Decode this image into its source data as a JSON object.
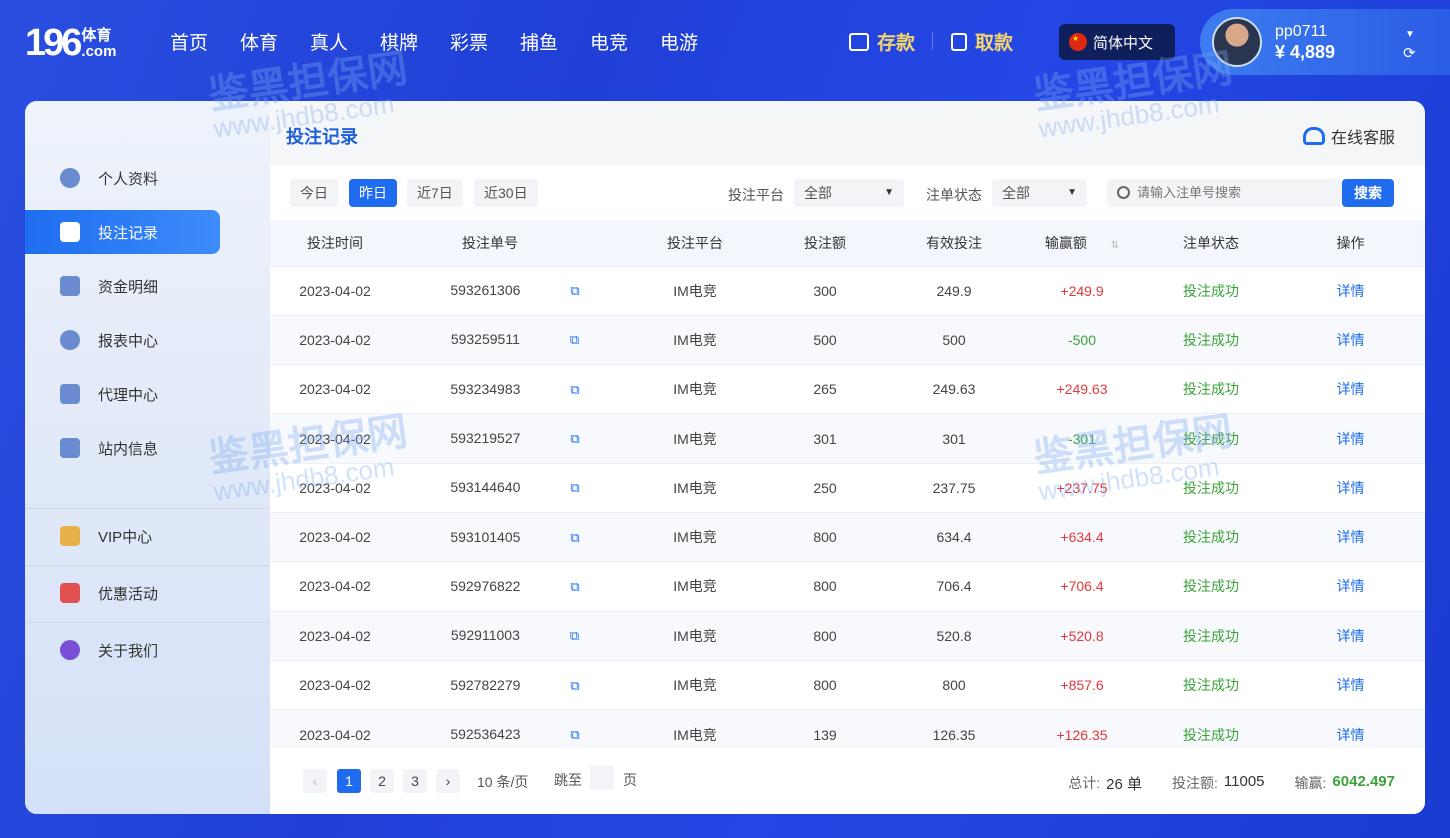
{
  "header": {
    "logo_number": "196",
    "logo_text": "体育",
    "logo_domain": ".com",
    "nav": [
      "首页",
      "体育",
      "真人",
      "棋牌",
      "彩票",
      "捕鱼",
      "电竞",
      "电游"
    ],
    "deposit": "存款",
    "withdraw": "取款",
    "language": "简体中文",
    "username": "pp0711",
    "balance": "¥ 4,889"
  },
  "sidebar": {
    "items": [
      {
        "label": "个人资料",
        "icon": "user-icon"
      },
      {
        "label": "投注记录",
        "icon": "calendar-icon",
        "active": true
      },
      {
        "label": "资金明细",
        "icon": "yen-icon"
      },
      {
        "label": "报表中心",
        "icon": "pie-chart-icon"
      },
      {
        "label": "代理中心",
        "icon": "agent-icon"
      },
      {
        "label": "站内信息",
        "icon": "mail-icon"
      },
      {
        "label": "VIP中心",
        "icon": "crown-icon"
      },
      {
        "label": "优惠活动",
        "icon": "gift-icon"
      },
      {
        "label": "关于我们",
        "icon": "info-icon"
      }
    ]
  },
  "main": {
    "title": "投注记录",
    "support": "在线客服",
    "filters": {
      "dates": [
        "今日",
        "昨日",
        "近7日",
        "近30日"
      ],
      "active_date": "昨日",
      "platform_label": "投注平台",
      "platform_value": "全部",
      "status_label": "注单状态",
      "status_value": "全部",
      "search_placeholder": "请输入注单号搜索",
      "search_button": "搜索"
    },
    "columns": [
      "投注时间",
      "投注单号",
      "投注平台",
      "投注额",
      "有效投注",
      "输赢额",
      "注单状态",
      "操作"
    ],
    "rows": [
      [
        "2023-04-02",
        "593261306",
        "IM电竞",
        "300",
        "249.9",
        "+249.9",
        "投注成功",
        "详情"
      ],
      [
        "2023-04-02",
        "593259511",
        "IM电竞",
        "500",
        "500",
        "-500",
        "投注成功",
        "详情"
      ],
      [
        "2023-04-02",
        "593234983",
        "IM电竞",
        "265",
        "249.63",
        "+249.63",
        "投注成功",
        "详情"
      ],
      [
        "2023-04-02",
        "593219527",
        "IM电竞",
        "301",
        "301",
        "-301",
        "投注成功",
        "详情"
      ],
      [
        "2023-04-02",
        "593144640",
        "IM电竞",
        "250",
        "237.75",
        "+237.75",
        "投注成功",
        "详情"
      ],
      [
        "2023-04-02",
        "593101405",
        "IM电竞",
        "800",
        "634.4",
        "+634.4",
        "投注成功",
        "详情"
      ],
      [
        "2023-04-02",
        "592976822",
        "IM电竞",
        "800",
        "706.4",
        "+706.4",
        "投注成功",
        "详情"
      ],
      [
        "2023-04-02",
        "592911003",
        "IM电竞",
        "800",
        "520.8",
        "+520.8",
        "投注成功",
        "详情"
      ],
      [
        "2023-04-02",
        "592782279",
        "IM电竞",
        "800",
        "800",
        "+857.6",
        "投注成功",
        "详情"
      ],
      [
        "2023-04-02",
        "592536423",
        "IM电竞",
        "139",
        "126.35",
        "+126.35",
        "投注成功",
        "详情"
      ]
    ],
    "pagination": {
      "pages": [
        "1",
        "2",
        "3"
      ],
      "current": "1",
      "per_page": "10 条/页",
      "jump_label": "跳至",
      "page_unit": "页"
    },
    "summary": {
      "total_label": "总计:",
      "total_value": "26 单",
      "bet_label": "投注额:",
      "bet_value": "11005",
      "win_label": "输赢:",
      "win_value": "6042.497"
    }
  },
  "watermark": {
    "text": "鉴黑担保网",
    "url": "www.jhdb8.com"
  },
  "colors": {
    "accent": "#1f6cf0",
    "positive": "#e0393e",
    "negative": "#3aa43a"
  }
}
